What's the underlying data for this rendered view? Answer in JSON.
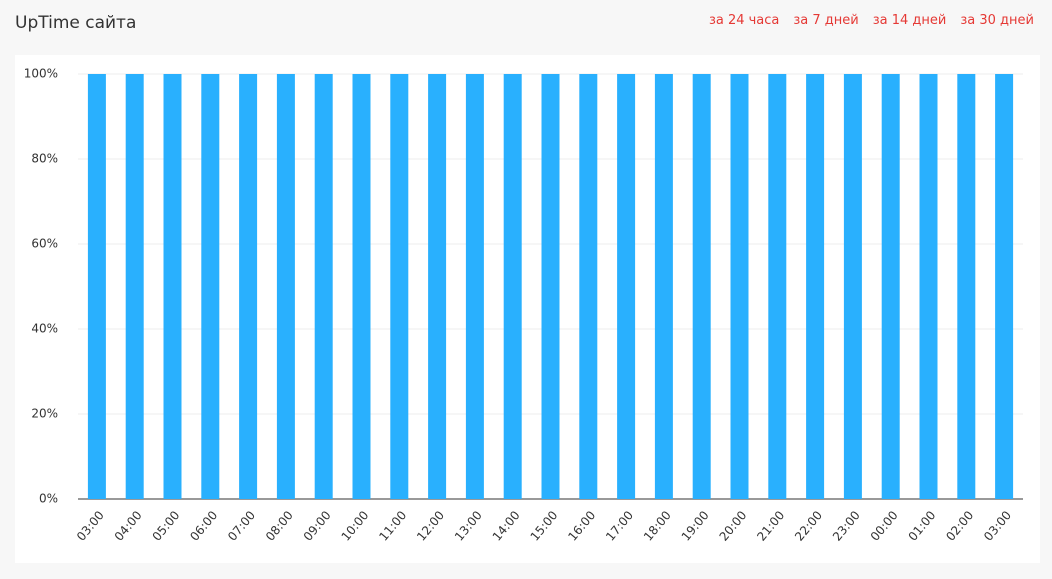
{
  "period_links": [
    "за 24 часа",
    "за 7 дней",
    "за 14 дней",
    "за 30 дней"
  ],
  "chart_data": {
    "type": "bar",
    "title": "UpTime сайта",
    "categories": [
      "03:00",
      "04:00",
      "05:00",
      "06:00",
      "07:00",
      "08:00",
      "09:00",
      "10:00",
      "11:00",
      "12:00",
      "13:00",
      "14:00",
      "15:00",
      "16:00",
      "17:00",
      "18:00",
      "19:00",
      "20:00",
      "21:00",
      "22:00",
      "23:00",
      "00:00",
      "01:00",
      "02:00",
      "03:00"
    ],
    "values": [
      100,
      100,
      100,
      100,
      100,
      100,
      100,
      100,
      100,
      100,
      100,
      100,
      100,
      100,
      100,
      100,
      100,
      100,
      100,
      100,
      100,
      100,
      100,
      100,
      100
    ],
    "color": "#29b0fe",
    "ylim": [
      0,
      100
    ],
    "yticks": [
      {
        "value": 0,
        "label": "0%"
      },
      {
        "value": 20,
        "label": "20%"
      },
      {
        "value": 40,
        "label": "40%"
      },
      {
        "value": 60,
        "label": "60%"
      },
      {
        "value": 80,
        "label": "80%"
      },
      {
        "value": 100,
        "label": "100%"
      }
    ],
    "grid": true
  }
}
